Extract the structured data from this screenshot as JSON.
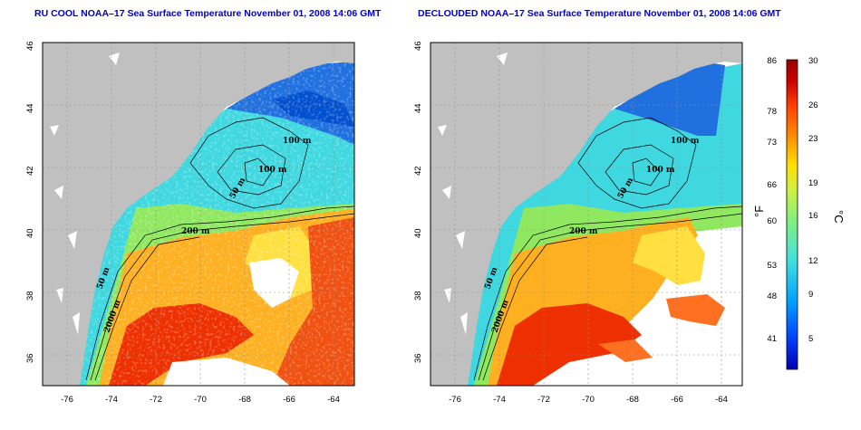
{
  "panels": [
    {
      "title": "RU COOL NOAA–17 Sea Surface Temperature November 01, 2008 14:06 GMT",
      "contour_labels": [
        "100 m",
        "100 m",
        "50 m",
        "200 m",
        "50 m",
        "2000 m"
      ]
    },
    {
      "title": "DECLOUDED NOAA–17 Sea Surface Temperature November 01, 2008 14:06 GMT",
      "contour_labels": [
        "100 m",
        "100 m",
        "50 m",
        "200 m",
        "50 m",
        "2000 m"
      ]
    }
  ],
  "axes": {
    "lon_ticks": [
      "-76",
      "-74",
      "-72",
      "-70",
      "-68",
      "-66",
      "-64"
    ],
    "lat_ticks": [
      "46",
      "44",
      "42",
      "40",
      "38",
      "36"
    ],
    "lon_range": [
      -77,
      -63
    ],
    "lat_range": [
      35,
      46
    ]
  },
  "colorbar": {
    "unit_f": "°F",
    "unit_c": "°C",
    "f_ticks": [
      "86",
      "78",
      "73",
      "66",
      "60",
      "53",
      "48",
      "41"
    ],
    "c_ticks": [
      "30",
      "26",
      "23",
      "19",
      "16",
      "12",
      "9",
      "5"
    ],
    "c_range": [
      2,
      30
    ],
    "colors": [
      "#0000b0",
      "#0040ff",
      "#00a0ff",
      "#40e0e0",
      "#80f080",
      "#d0f040",
      "#ffe000",
      "#ff9000",
      "#ff4000",
      "#cc0000",
      "#990000"
    ]
  },
  "colors": {
    "land": "#c0c0c0",
    "cold": "#2070e0",
    "cool": "#40d0e0",
    "warm": "#ffb020",
    "hot": "#ee3000",
    "title": "#0000cc"
  }
}
